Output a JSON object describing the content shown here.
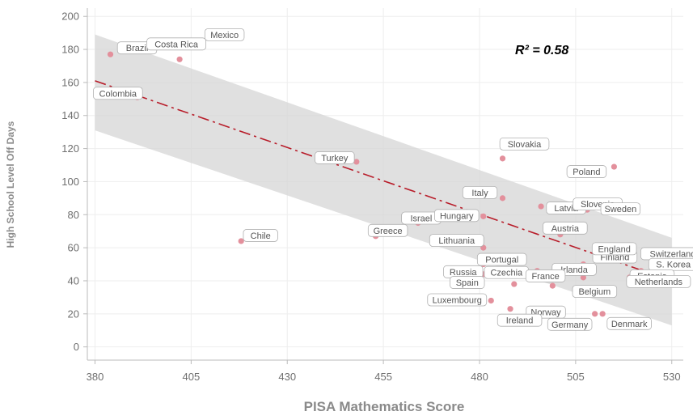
{
  "colors": {
    "point": "#e3909c",
    "trend": "#b81d2a",
    "band": "#d6d6d6",
    "grid": "#eeeeee",
    "axis": "#bbbbbb",
    "label_border": "#b0b0b0",
    "text": "#6f6f6f"
  },
  "chart_data": {
    "type": "scatter",
    "title": "",
    "xlabel": "PISA Mathematics Score",
    "ylabel": "High School Level Off Days",
    "xlim": [
      378,
      533
    ],
    "ylim": [
      -8,
      205
    ],
    "xticks": [
      380,
      405,
      430,
      455,
      480,
      505,
      530
    ],
    "yticks": [
      0,
      20,
      40,
      60,
      80,
      100,
      120,
      140,
      160,
      180,
      200
    ],
    "annotation": "R² = 0.58",
    "trend": {
      "x": [
        380,
        530
      ],
      "y": [
        161,
        40
      ],
      "band_lower": [
        131,
        13
      ],
      "band_upper": [
        189,
        66
      ]
    },
    "points": [
      {
        "name": "Brazil",
        "x": 384,
        "y": 177
      },
      {
        "name": "Mexico",
        "x": 408,
        "y": 184
      },
      {
        "name": "Costa Rica",
        "x": 402,
        "y": 174
      },
      {
        "name": "Colombia",
        "x": 391,
        "y": 151
      },
      {
        "name": "Chile",
        "x": 418,
        "y": 64
      },
      {
        "name": "Turkey",
        "x": 448,
        "y": 112
      },
      {
        "name": "Greece",
        "x": 453,
        "y": 67
      },
      {
        "name": "Israel",
        "x": 464,
        "y": 75
      },
      {
        "name": "Slovakia",
        "x": 486,
        "y": 114
      },
      {
        "name": "Italy",
        "x": 486,
        "y": 90
      },
      {
        "name": "Latvia",
        "x": 496,
        "y": 85
      },
      {
        "name": "Hungary",
        "x": 481,
        "y": 79
      },
      {
        "name": "Lithuania",
        "x": 481,
        "y": 60
      },
      {
        "name": "Poland",
        "x": 515,
        "y": 109
      },
      {
        "name": "Slovenia",
        "x": 508,
        "y": 83
      },
      {
        "name": "Sweden",
        "x": 499,
        "y": 83
      },
      {
        "name": "Austria",
        "x": 501,
        "y": 68
      },
      {
        "name": "Czechia",
        "x": 495,
        "y": 46
      },
      {
        "name": "Finland",
        "x": 507,
        "y": 50
      },
      {
        "name": "England",
        "x": 514,
        "y": 55
      },
      {
        "name": "Switzerland",
        "x": 525,
        "y": 53
      },
      {
        "name": "S. Korea",
        "x": 522,
        "y": 46
      },
      {
        "name": "Estonia",
        "x": 519,
        "y": 42
      },
      {
        "name": "Netherlands",
        "x": 507,
        "y": 42
      },
      {
        "name": "Portugal",
        "x": 481,
        "y": 50
      },
      {
        "name": "Russia",
        "x": 481,
        "y": 44
      },
      {
        "name": "Irlanda",
        "x": 500,
        "y": 43
      },
      {
        "name": "Belgium",
        "x": 499,
        "y": 37
      },
      {
        "name": "Spain",
        "x": 489,
        "y": 38
      },
      {
        "name": "France",
        "x": 498,
        "y": 41
      },
      {
        "name": "Luxembourg",
        "x": 483,
        "y": 28
      },
      {
        "name": "Norway",
        "x": 488,
        "y": 23
      },
      {
        "name": "Ireland",
        "x": 498,
        "y": 23
      },
      {
        "name": "Germany",
        "x": 510,
        "y": 20
      },
      {
        "name": "Denmark",
        "x": 512,
        "y": 20
      }
    ]
  }
}
